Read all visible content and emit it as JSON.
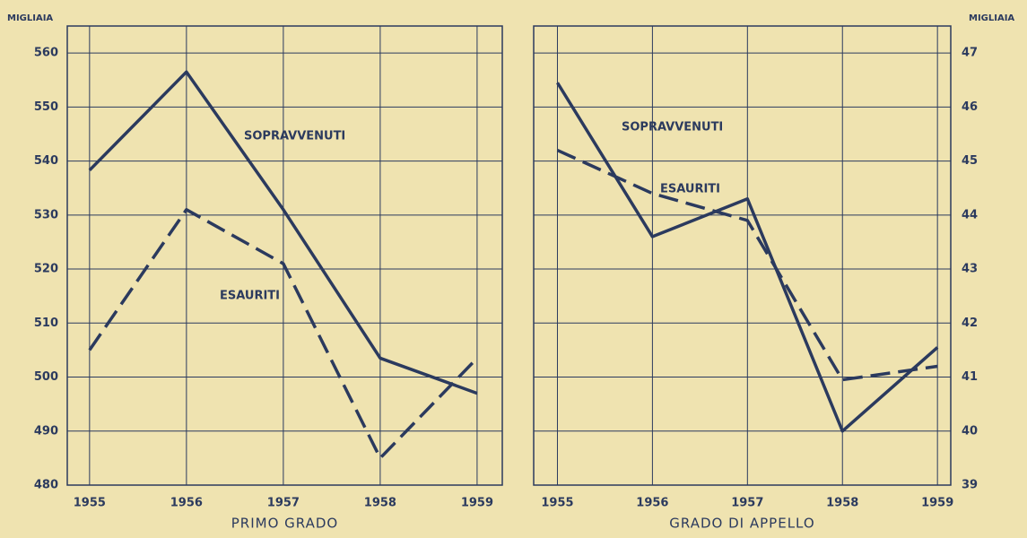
{
  "chart_data": [
    {
      "type": "line",
      "ylabel": "MIGLIAIA",
      "xlabel": "PRIMO GRADO",
      "yaxis": "left",
      "x": [
        1955,
        1956,
        1957,
        1958,
        1959
      ],
      "xlim": [
        1954.77,
        1959.26
      ],
      "ylim": [
        480,
        565
      ],
      "yticks": [
        480,
        490,
        500,
        510,
        520,
        530,
        540,
        550,
        560
      ],
      "grid": true,
      "series": [
        {
          "name": "SOPRAVVENUTI",
          "color": "#2b3a5e",
          "linestyle": "solid",
          "values": [
            538.3,
            556.5,
            531,
            503.5,
            497
          ]
        },
        {
          "name": "ESAURITI",
          "color": "#2b3a5e",
          "linestyle": "dashed",
          "values": [
            505,
            531,
            521,
            485,
            503.5
          ]
        }
      ]
    },
    {
      "type": "line",
      "ylabel": "MIGLIAIA",
      "xlabel": "GRADO DI APPELLO",
      "yaxis": "right",
      "x": [
        1955,
        1956,
        1957,
        1958,
        1959
      ],
      "xlim": [
        1954.75,
        1959.14
      ],
      "ylim": [
        39,
        47.5
      ],
      "yticks": [
        39,
        40,
        41,
        42,
        43,
        44,
        45,
        46,
        47
      ],
      "grid": true,
      "series": [
        {
          "name": "SOPRAVVENUTI",
          "color": "#2b3a5e",
          "linestyle": "solid",
          "values": [
            46.45,
            43.6,
            44.3,
            40.0,
            41.55
          ]
        },
        {
          "name": "ESAURITI",
          "color": "#2b3a5e",
          "linestyle": "dashed",
          "values": [
            45.2,
            44.4,
            43.9,
            40.95,
            41.2
          ]
        }
      ]
    }
  ]
}
